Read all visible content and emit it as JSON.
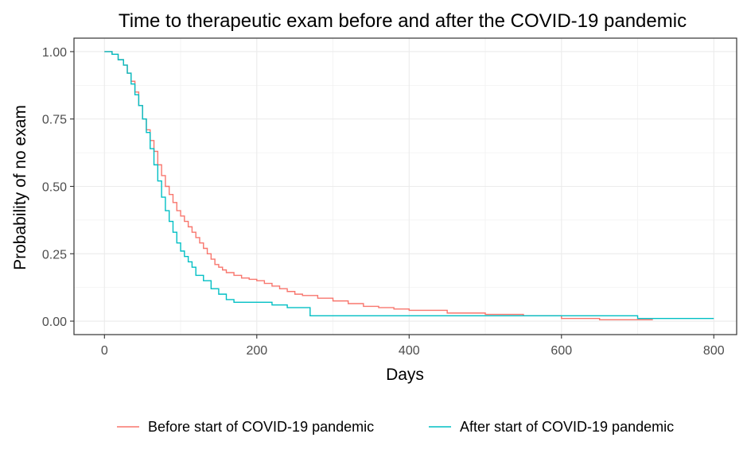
{
  "chart_data": {
    "type": "line",
    "title": "Time to therapeutic exam before and after the COVID-19 pandemic",
    "xlabel": "Days",
    "ylabel": "Probability of no exam",
    "xlim": [
      -40,
      830
    ],
    "ylim": [
      -0.05,
      1.05
    ],
    "xticks": [
      0,
      200,
      400,
      600,
      800
    ],
    "xtick_labels": [
      "0",
      "200",
      "400",
      "600",
      "800"
    ],
    "yticks": [
      0,
      0.25,
      0.5,
      0.75,
      1
    ],
    "ytick_labels": [
      "0.00",
      "0.25",
      "0.50",
      "0.75",
      "1.00"
    ],
    "grid": true,
    "legend_position": "bottom",
    "series": [
      {
        "name": "Before start of COVID-19 pandemic",
        "color": "#F8766D",
        "step": true,
        "x": [
          0,
          10,
          18,
          25,
          30,
          35,
          40,
          45,
          50,
          55,
          60,
          65,
          70,
          75,
          80,
          85,
          90,
          95,
          100,
          105,
          110,
          115,
          120,
          125,
          130,
          135,
          140,
          145,
          150,
          155,
          160,
          170,
          180,
          190,
          200,
          210,
          220,
          230,
          240,
          250,
          260,
          280,
          300,
          320,
          340,
          360,
          380,
          400,
          450,
          500,
          550,
          600,
          650,
          700,
          720
        ],
        "values": [
          1.0,
          0.99,
          0.97,
          0.95,
          0.92,
          0.89,
          0.85,
          0.8,
          0.75,
          0.71,
          0.67,
          0.63,
          0.58,
          0.54,
          0.5,
          0.47,
          0.44,
          0.41,
          0.39,
          0.37,
          0.35,
          0.33,
          0.31,
          0.29,
          0.27,
          0.25,
          0.23,
          0.21,
          0.2,
          0.19,
          0.18,
          0.17,
          0.16,
          0.155,
          0.15,
          0.14,
          0.13,
          0.12,
          0.11,
          0.1,
          0.095,
          0.085,
          0.075,
          0.065,
          0.055,
          0.05,
          0.045,
          0.04,
          0.03,
          0.025,
          0.02,
          0.01,
          0.005,
          0.005,
          0.005
        ]
      },
      {
        "name": "After start of COVID-19 pandemic",
        "color": "#00BFC4",
        "step": true,
        "x": [
          0,
          10,
          18,
          25,
          30,
          35,
          40,
          45,
          50,
          55,
          60,
          65,
          70,
          75,
          80,
          85,
          90,
          95,
          100,
          105,
          110,
          115,
          120,
          130,
          140,
          150,
          160,
          170,
          180,
          200,
          220,
          240,
          260,
          270,
          300,
          400,
          500,
          600,
          690,
          700,
          800
        ],
        "values": [
          1.0,
          0.99,
          0.97,
          0.95,
          0.92,
          0.88,
          0.84,
          0.8,
          0.75,
          0.7,
          0.64,
          0.58,
          0.52,
          0.46,
          0.41,
          0.37,
          0.33,
          0.29,
          0.26,
          0.24,
          0.22,
          0.2,
          0.17,
          0.15,
          0.12,
          0.1,
          0.08,
          0.07,
          0.07,
          0.07,
          0.06,
          0.05,
          0.05,
          0.02,
          0.02,
          0.02,
          0.02,
          0.02,
          0.02,
          0.01,
          0.01
        ]
      }
    ]
  }
}
